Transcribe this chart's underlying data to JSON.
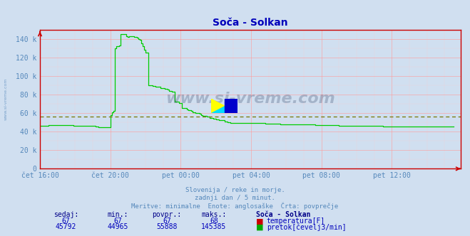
{
  "title": "Soča - Solkan",
  "title_color": "#0000bb",
  "bg_color": "#d0dff0",
  "plot_bg_color": "#d0dff0",
  "grid_color_major": "#ff9999",
  "grid_color_minor": "#ffcccc",
  "x_axis_color": "#cc0000",
  "watermark": "www.si-vreme.com",
  "watermark_color": "#334466",
  "subtitle_lines": [
    "Slovenija / reke in morje.",
    "zadnji dan / 5 minut.",
    "Meritve: minimalne  Enote: anglosaške  Črta: povprečje"
  ],
  "subtitle_color": "#5588bb",
  "x_tick_labels": [
    "čet 16:00",
    "čet 20:00",
    "pet 00:00",
    "pet 04:00",
    "pet 08:00",
    "pet 12:00"
  ],
  "x_tick_positions": [
    0,
    48,
    96,
    144,
    192,
    240
  ],
  "y_tick_labels": [
    "0",
    "20 k",
    "40 k",
    "60 k",
    "80 k",
    "100 k",
    "120 k",
    "140 k"
  ],
  "y_tick_positions": [
    0,
    20000,
    40000,
    60000,
    80000,
    100000,
    120000,
    140000
  ],
  "ylim": [
    0,
    150000
  ],
  "xlim": [
    0,
    287
  ],
  "avg_line_value": 55888,
  "avg_line_color": "#777700",
  "flow_color": "#00cc00",
  "temp_color": "#cc0000",
  "legend_table": {
    "headers": [
      "sedaj:",
      "min.:",
      "povpr.:",
      "maks.:",
      "Soča - Solkan"
    ],
    "row1": [
      "67",
      "67",
      "67",
      "68",
      "temperatura[F]"
    ],
    "row1_color": "#cc0000",
    "row2": [
      "45792",
      "44965",
      "55888",
      "145385",
      "pretok[čevelj3/min]"
    ],
    "row2_color": "#00aa00",
    "header_color": "#000088",
    "value_color": "#0000bb"
  },
  "icon_colors": {
    "yellow": "#ffff00",
    "cyan": "#00ddff",
    "blue": "#0000cc"
  },
  "flow_data": [
    46000,
    46000,
    46000,
    46000,
    46000,
    46500,
    47000,
    47000,
    47000,
    47000,
    47000,
    47000,
    47000,
    47000,
    47000,
    47000,
    47000,
    47000,
    47000,
    47000,
    47000,
    47000,
    47000,
    46500,
    46500,
    46500,
    46500,
    46500,
    46500,
    46500,
    46500,
    46500,
    46500,
    46500,
    46000,
    46000,
    46000,
    46000,
    45500,
    45500,
    45000,
    45000,
    45000,
    45000,
    45000,
    45000,
    45000,
    45000,
    58000,
    61000,
    62000,
    130000,
    132000,
    132000,
    133000,
    145000,
    145000,
    145000,
    145000,
    143000,
    142000,
    143000,
    143000,
    143000,
    142000,
    142000,
    141000,
    140000,
    139000,
    135000,
    132000,
    128000,
    125000,
    125000,
    90000,
    90000,
    90000,
    89000,
    89000,
    88000,
    88000,
    88000,
    87000,
    87000,
    87000,
    86000,
    86000,
    85000,
    84000,
    84000,
    83000,
    83000,
    72000,
    72000,
    72000,
    71000,
    71000,
    65000,
    65000,
    65000,
    64000,
    63000,
    63000,
    62000,
    61000,
    61000,
    60000,
    60000,
    60000,
    59000,
    58000,
    57000,
    57000,
    57000,
    56000,
    56000,
    55000,
    55000,
    54000,
    54000,
    53000,
    53000,
    52000,
    52000,
    52000,
    52000,
    51000,
    51000,
    50000,
    50000,
    49500,
    49500,
    49500,
    49500,
    49500,
    49500,
    49500,
    49500,
    49500,
    49500,
    49500,
    49500,
    49500,
    49500,
    49000,
    49000,
    49000,
    49000,
    49000,
    49000,
    49000,
    49000,
    49000,
    49000,
    48500,
    48500,
    48500,
    48500,
    48500,
    48500,
    48500,
    48500,
    48500,
    48500,
    48000,
    48000,
    48000,
    48000,
    48000,
    48000,
    48000,
    48000,
    47500,
    47500,
    47500,
    47500,
    47500,
    47500,
    47500,
    47500,
    47500,
    47500,
    47500,
    47500,
    47500,
    47500,
    47500,
    47500,
    47000,
    47000,
    47000,
    47000,
    47000,
    47000,
    47000,
    47000,
    47000,
    47000,
    47000,
    47000,
    47000,
    47000,
    47000,
    47000,
    46500,
    46500,
    46500,
    46500,
    46500,
    46500,
    46500,
    46500,
    46500,
    46500,
    46500,
    46500,
    46500,
    46500,
    46500,
    46500,
    46500,
    46500,
    46500,
    46500,
    46500,
    46500,
    46500,
    46500,
    46500,
    46500,
    46500,
    46500,
    46500,
    46500,
    45800,
    45800,
    45800,
    45800,
    45800,
    45800,
    45800,
    45800,
    45800,
    45800,
    45800,
    45800,
    45800,
    45800,
    45800,
    45800,
    45800,
    45800,
    45800,
    45800,
    45800,
    45800,
    45800,
    45800,
    45800,
    45800,
    45800,
    45800,
    45800,
    45800,
    45800,
    45800,
    45800,
    45800,
    45800,
    45800,
    45800,
    45800,
    45800,
    45800,
    45800,
    45800,
    45800,
    45800,
    45800,
    45800,
    45800,
    45800,
    45800
  ]
}
